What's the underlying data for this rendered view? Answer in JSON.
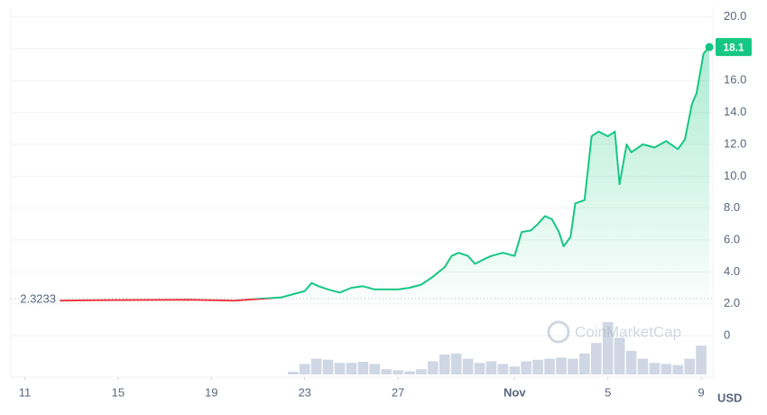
{
  "chart_data": {
    "type": "line",
    "x": [
      12.5,
      14,
      16,
      18,
      19,
      20,
      21,
      22,
      22.5,
      23,
      23.3,
      23.6,
      24,
      24.5,
      25,
      25.5,
      26,
      27,
      27.5,
      28,
      28.5,
      29,
      29.3,
      29.6,
      30,
      30.3,
      30.7,
      31,
      31.5,
      32,
      32.3,
      32.7,
      33,
      33.3,
      33.6,
      33.9,
      34.1,
      34.4,
      34.6,
      35,
      35.3,
      35.6,
      36,
      36.3,
      36.5,
      36.8,
      37,
      37.5,
      38,
      38.5,
      39,
      39.3,
      39.6,
      39.8,
      40.1,
      40.35
    ],
    "series": [
      {
        "color": "#16c784",
        "values": [
          2.2,
          2.22,
          2.24,
          2.25,
          2.22,
          2.2,
          2.3,
          2.4,
          2.6,
          2.8,
          3.3,
          3.1,
          2.9,
          2.7,
          3.0,
          3.1,
          2.9,
          2.9,
          3.0,
          3.2,
          3.7,
          4.3,
          5.0,
          5.2,
          5.0,
          4.5,
          4.8,
          5.0,
          5.2,
          5.0,
          6.5,
          6.6,
          7.0,
          7.5,
          7.3,
          6.5,
          5.6,
          6.2,
          8.3,
          8.5,
          12.5,
          12.8,
          12.5,
          12.8,
          9.5,
          12.0,
          11.5,
          12.0,
          11.8,
          12.2,
          11.7,
          12.3,
          14.5,
          15.2,
          17.7,
          18.1
        ]
      }
    ],
    "below_color": "#ea3943",
    "baseline": 2.3233,
    "volume": {
      "color": "#cfd6e4",
      "x": [
        22.5,
        23,
        23.5,
        24,
        24.5,
        25,
        25.5,
        26,
        26.5,
        27,
        27.5,
        28,
        28.5,
        29,
        29.5,
        30,
        30.5,
        31,
        31.5,
        32,
        32.5,
        33,
        33.5,
        34,
        34.5,
        35,
        35.5,
        36,
        36.5,
        37,
        37.5,
        38,
        38.5,
        39,
        39.5,
        40
      ],
      "values": [
        5,
        20,
        30,
        28,
        22,
        22,
        24,
        20,
        10,
        8,
        6,
        10,
        25,
        38,
        40,
        30,
        22,
        25,
        20,
        15,
        25,
        28,
        30,
        32,
        30,
        40,
        60,
        100,
        70,
        45,
        30,
        22,
        20,
        18,
        30,
        55
      ],
      "y2lim": [
        0,
        100
      ]
    },
    "xlim": [
      10.4,
      40.5
    ],
    "xticks": [
      11,
      15,
      19,
      23,
      27,
      {
        "value": 32,
        "label": "Nov"
      },
      {
        "value": 36,
        "label": "5"
      },
      {
        "value": 40,
        "label": "9"
      }
    ],
    "ylim": [
      -2.6,
      20.6
    ],
    "yticks": [
      0,
      {
        "value": 2,
        "label": "2.0"
      },
      {
        "value": 4,
        "label": "4.0"
      },
      {
        "value": 6,
        "label": "6.0"
      },
      {
        "value": 8,
        "label": "8.0"
      },
      {
        "value": 10,
        "label": "10.0"
      },
      {
        "value": 12,
        "label": "12.0"
      },
      {
        "value": 14,
        "label": "14.0"
      },
      {
        "value": 16,
        "label": "16.0"
      },
      {
        "value": 18,
        "label": "18.0"
      },
      {
        "value": 20,
        "label": "20.0"
      }
    ],
    "grid": true,
    "y_unit": "USD",
    "watermark": "CoinMarketCap"
  }
}
